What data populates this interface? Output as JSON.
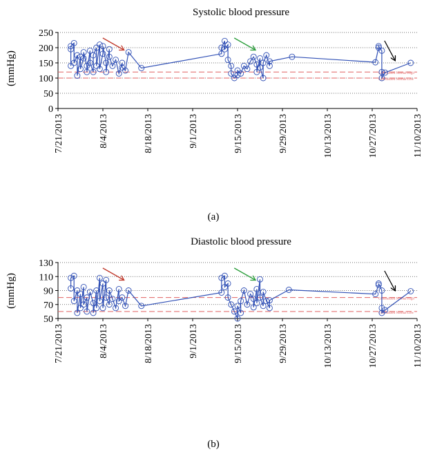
{
  "chart_data": [
    {
      "type": "line",
      "panel_label": "(a)",
      "title": "Systolic blood pressure",
      "ylabel": "(mmHg)",
      "ylim": [
        0,
        250
      ],
      "yticks": [
        0,
        50,
        100,
        150,
        200,
        250
      ],
      "xlim": [
        "2013-07-21",
        "2013-11-10"
      ],
      "xtick_dates": [
        "2013-07-21",
        "2013-08-04",
        "2013-08-18",
        "2013-09-01",
        "2013-09-15",
        "2013-09-29",
        "2013-10-13",
        "2013-10-27",
        "2013-11-10"
      ],
      "xtick_labels": [
        "7/21/2013",
        "8/4/2013",
        "8/18/2013",
        "9/1/2013",
        "9/15/2013",
        "9/29/2013",
        "10/13/2013",
        "10/27/2013",
        "11/10/2013"
      ],
      "grid": "horizontal dotted",
      "series": [
        {
          "color": "#2f4fb5",
          "marker": "open-circle",
          "points": [
            [
              "2013-07-25",
              195
            ],
            [
              "2013-07-25",
              140
            ],
            [
              "2013-07-25",
              205
            ],
            [
              "2013-07-26",
              215
            ],
            [
              "2013-07-26",
              150
            ],
            [
              "2013-07-27",
              175
            ],
            [
              "2013-07-27",
              108
            ],
            [
              "2013-07-28",
              170
            ],
            [
              "2013-07-28",
              130
            ],
            [
              "2013-07-29",
              165
            ],
            [
              "2013-07-29",
              185
            ],
            [
              "2013-07-30",
              140
            ],
            [
              "2013-07-30",
              120
            ],
            [
              "2013-07-31",
              190
            ],
            [
              "2013-07-31",
              150
            ],
            [
              "2013-08-01",
              120
            ],
            [
              "2013-08-01",
              175
            ],
            [
              "2013-08-02",
              200
            ],
            [
              "2013-08-02",
              140
            ],
            [
              "2013-08-03",
              210
            ],
            [
              "2013-08-03",
              130
            ],
            [
              "2013-08-04",
              180
            ],
            [
              "2013-08-04",
              205
            ],
            [
              "2013-08-05",
              150
            ],
            [
              "2013-08-05",
              120
            ],
            [
              "2013-08-06",
              195
            ],
            [
              "2013-08-06",
              170
            ],
            [
              "2013-08-07",
              140
            ],
            [
              "2013-08-08",
              160
            ],
            [
              "2013-08-09",
              115
            ],
            [
              "2013-08-10",
              150
            ],
            [
              "2013-08-10",
              135
            ],
            [
              "2013-08-11",
              125
            ],
            [
              "2013-08-12",
              185
            ],
            [
              "2013-08-16",
              133
            ],
            [
              "2013-09-10",
              180
            ],
            [
              "2013-09-10",
              200
            ],
            [
              "2013-09-11",
              222
            ],
            [
              "2013-09-11",
              195
            ],
            [
              "2013-09-12",
              210
            ],
            [
              "2013-09-12",
              160
            ],
            [
              "2013-09-13",
              140
            ],
            [
              "2013-09-13",
              115
            ],
            [
              "2013-09-14",
              100
            ],
            [
              "2013-09-15",
              110
            ],
            [
              "2013-09-15",
              125
            ],
            [
              "2013-09-16",
              115
            ],
            [
              "2013-09-17",
              140
            ],
            [
              "2013-09-18",
              130
            ],
            [
              "2013-09-19",
              155
            ],
            [
              "2013-09-20",
              170
            ],
            [
              "2013-09-21",
              145
            ],
            [
              "2013-09-21",
              120
            ],
            [
              "2013-09-22",
              165
            ],
            [
              "2013-09-22",
              135
            ],
            [
              "2013-09-23",
              100
            ],
            [
              "2013-09-23",
              150
            ],
            [
              "2013-09-24",
              175
            ],
            [
              "2013-09-25",
              140
            ],
            [
              "2013-09-25",
              155
            ],
            [
              "2013-10-02",
              170
            ],
            [
              "2013-10-28",
              152
            ],
            [
              "2013-10-29",
              200
            ],
            [
              "2013-10-29",
              205
            ],
            [
              "2013-10-30",
              190
            ],
            [
              "2013-10-30",
              120
            ],
            [
              "2013-10-30",
              100
            ],
            [
              "2013-10-31",
              118
            ],
            [
              "2013-11-08",
              150
            ]
          ]
        }
      ],
      "reference_lines": [
        {
          "y": 120,
          "style": "dashed",
          "color": "#e06060",
          "label": "Generalized Normal High"
        },
        {
          "y": 100,
          "style": "dashed",
          "color": "#e06060",
          "label": "Generalized Normal Low"
        }
      ],
      "arrows": [
        {
          "color": "#c0392b",
          "near": "2013-08-10"
        },
        {
          "color": "#2a9d3a",
          "near": "2013-09-20"
        },
        {
          "color": "#000000",
          "near": "2013-11-02"
        }
      ]
    },
    {
      "type": "line",
      "panel_label": "(b)",
      "title": "Diastolic blood pressure",
      "ylabel": "(mmHg)",
      "ylim": [
        50,
        130
      ],
      "yticks": [
        50,
        70,
        90,
        110,
        130
      ],
      "xlim": [
        "2013-07-21",
        "2013-11-10"
      ],
      "xtick_dates": [
        "2013-07-21",
        "2013-08-04",
        "2013-08-18",
        "2013-09-01",
        "2013-09-15",
        "2013-09-29",
        "2013-10-13",
        "2013-10-27",
        "2013-11-10"
      ],
      "xtick_labels": [
        "7/21/2013",
        "8/4/2013",
        "8/18/2013",
        "9/1/2013",
        "9/15/2013",
        "9/29/2013",
        "10/13/2013",
        "10/27/2013",
        "11/10/2013"
      ],
      "grid": "horizontal dotted",
      "series": [
        {
          "color": "#2f4fb5",
          "marker": "open-circle",
          "points": [
            [
              "2013-07-25",
              93
            ],
            [
              "2013-07-25",
              108
            ],
            [
              "2013-07-26",
              111
            ],
            [
              "2013-07-26",
              75
            ],
            [
              "2013-07-27",
              90
            ],
            [
              "2013-07-27",
              58
            ],
            [
              "2013-07-28",
              85
            ],
            [
              "2013-07-28",
              65
            ],
            [
              "2013-07-29",
              95
            ],
            [
              "2013-07-29",
              70
            ],
            [
              "2013-07-30",
              80
            ],
            [
              "2013-07-30",
              60
            ],
            [
              "2013-07-31",
              88
            ],
            [
              "2013-08-01",
              72
            ],
            [
              "2013-08-01",
              58
            ],
            [
              "2013-08-02",
              90
            ],
            [
              "2013-08-02",
              65
            ],
            [
              "2013-08-03",
              108
            ],
            [
              "2013-08-03",
              75
            ],
            [
              "2013-08-04",
              100
            ],
            [
              "2013-08-04",
              65
            ],
            [
              "2013-08-05",
              105
            ],
            [
              "2013-08-05",
              80
            ],
            [
              "2013-08-06",
              70
            ],
            [
              "2013-08-06",
              90
            ],
            [
              "2013-08-07",
              78
            ],
            [
              "2013-08-08",
              65
            ],
            [
              "2013-08-09",
              92
            ],
            [
              "2013-08-09",
              75
            ],
            [
              "2013-08-10",
              80
            ],
            [
              "2013-08-11",
              68
            ],
            [
              "2013-08-12",
              90
            ],
            [
              "2013-08-16",
              68
            ],
            [
              "2013-09-10",
              87
            ],
            [
              "2013-09-10",
              108
            ],
            [
              "2013-09-11",
              111
            ],
            [
              "2013-09-11",
              95
            ],
            [
              "2013-09-12",
              100
            ],
            [
              "2013-09-12",
              80
            ],
            [
              "2013-09-13",
              70
            ],
            [
              "2013-09-14",
              60
            ],
            [
              "2013-09-15",
              50
            ],
            [
              "2013-09-15",
              68
            ],
            [
              "2013-09-16",
              58
            ],
            [
              "2013-09-16",
              75
            ],
            [
              "2013-09-17",
              90
            ],
            [
              "2013-09-18",
              70
            ],
            [
              "2013-09-19",
              85
            ],
            [
              "2013-09-20",
              78
            ],
            [
              "2013-09-20",
              66
            ],
            [
              "2013-09-21",
              92
            ],
            [
              "2013-09-21",
              72
            ],
            [
              "2013-09-22",
              106
            ],
            [
              "2013-09-22",
              80
            ],
            [
              "2013-09-23",
              68
            ],
            [
              "2013-09-23",
              88
            ],
            [
              "2013-09-24",
              75
            ],
            [
              "2013-09-25",
              65
            ],
            [
              "2013-09-25",
              76
            ],
            [
              "2013-10-01",
              91
            ],
            [
              "2013-10-28",
              85
            ],
            [
              "2013-10-29",
              98
            ],
            [
              "2013-10-29",
              100
            ],
            [
              "2013-10-30",
              90
            ],
            [
              "2013-10-30",
              65
            ],
            [
              "2013-10-30",
              58
            ],
            [
              "2013-10-31",
              62
            ],
            [
              "2013-11-08",
              89
            ]
          ]
        }
      ],
      "reference_lines": [
        {
          "y": 80,
          "style": "dashed",
          "color": "#e06060",
          "label": "Generalized Normal High"
        },
        {
          "y": 60,
          "style": "dashed",
          "color": "#e06060",
          "label": "Generalized Normal Low"
        }
      ],
      "arrows": [
        {
          "color": "#c0392b",
          "near": "2013-08-10"
        },
        {
          "color": "#2a9d3a",
          "near": "2013-09-20"
        },
        {
          "color": "#000000",
          "near": "2013-11-02"
        }
      ]
    }
  ]
}
